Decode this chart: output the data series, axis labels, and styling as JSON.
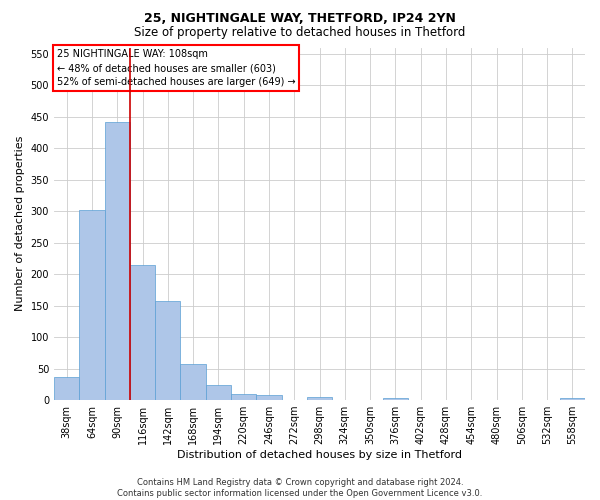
{
  "title_line1": "25, NIGHTINGALE WAY, THETFORD, IP24 2YN",
  "title_line2": "Size of property relative to detached houses in Thetford",
  "xlabel": "Distribution of detached houses by size in Thetford",
  "ylabel": "Number of detached properties",
  "footer": "Contains HM Land Registry data © Crown copyright and database right 2024.\nContains public sector information licensed under the Open Government Licence v3.0.",
  "categories": [
    "38sqm",
    "64sqm",
    "90sqm",
    "116sqm",
    "142sqm",
    "168sqm",
    "194sqm",
    "220sqm",
    "246sqm",
    "272sqm",
    "298sqm",
    "324sqm",
    "350sqm",
    "376sqm",
    "402sqm",
    "428sqm",
    "454sqm",
    "480sqm",
    "506sqm",
    "532sqm",
    "558sqm"
  ],
  "values": [
    36,
    302,
    442,
    215,
    157,
    58,
    24,
    10,
    8,
    0,
    5,
    0,
    0,
    4,
    0,
    0,
    0,
    0,
    0,
    0,
    4
  ],
  "bar_color": "#aec6e8",
  "bar_edgecolor": "#5a9fd4",
  "vline_color": "#cc0000",
  "vline_x": 2.5,
  "annotation_text": "25 NIGHTINGALE WAY: 108sqm\n← 48% of detached houses are smaller (603)\n52% of semi-detached houses are larger (649) →",
  "ylim": [
    0,
    560
  ],
  "yticks": [
    0,
    50,
    100,
    150,
    200,
    250,
    300,
    350,
    400,
    450,
    500,
    550
  ],
  "bg_color": "#ffffff",
  "grid_color": "#cccccc",
  "title1_fontsize": 9,
  "title2_fontsize": 8.5,
  "xlabel_fontsize": 8,
  "ylabel_fontsize": 8,
  "tick_fontsize": 7,
  "annot_fontsize": 7,
  "footer_fontsize": 6
}
